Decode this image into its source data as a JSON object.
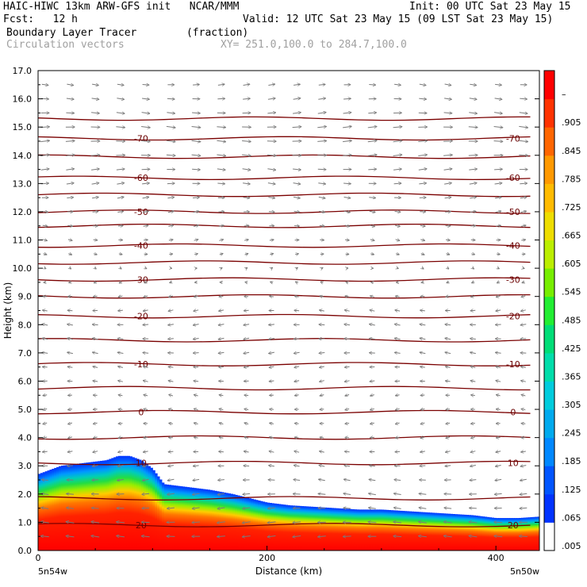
{
  "header": {
    "line1_left": "HAIC-HIWC 13km ARW-GFS init   NCAR/MMM",
    "line1_right": "Init: 00 UTC Sat 23 May 15",
    "line2_left": "Fcst:   12 h",
    "line2_right": "Valid: 12 UTC Sat 23 May 15 (09 LST Sat 23 May 15)",
    "line3_left": "Boundary Layer Tracer        (fraction)",
    "line4_left": "Circulation vectors",
    "line4_right": "XY= 251.0,100.0 to 284.7,100.0"
  },
  "chart_data": {
    "type": "heatmap",
    "xlabel": "Distance (km)",
    "ylabel": "Height (km)",
    "xlim": [
      0,
      438
    ],
    "ylim": [
      0,
      17
    ],
    "x_ticks": [
      "0",
      "200",
      "400"
    ],
    "x_tick_values": [
      0,
      200,
      400
    ],
    "y_ticks": [
      "0.0",
      "1.0",
      "2.0",
      "3.0",
      "4.0",
      "5.0",
      "6.0",
      "7.0",
      "8.0",
      "9.0",
      "10.0",
      "11.0",
      "12.0",
      "13.0",
      "14.0",
      "15.0",
      "16.0",
      "17.0"
    ],
    "x_endpoint_labels": {
      "left": "5n54w",
      "right": "5n50w"
    },
    "tracer_top_profile": {
      "x": [
        0,
        20,
        40,
        60,
        70,
        80,
        90,
        100,
        110,
        130,
        150,
        170,
        190,
        200,
        220,
        240,
        260,
        280,
        300,
        320,
        340,
        360,
        380,
        400,
        420,
        438
      ],
      "top_km": [
        2.7,
        3.0,
        3.1,
        3.2,
        3.35,
        3.35,
        3.2,
        2.9,
        2.35,
        2.25,
        2.15,
        2.0,
        1.8,
        1.7,
        1.6,
        1.55,
        1.5,
        1.45,
        1.45,
        1.4,
        1.35,
        1.3,
        1.25,
        1.15,
        1.15,
        1.2
      ]
    },
    "colorbar": {
      "labels": [
        ".005",
        ".065",
        ".125",
        ".185",
        ".245",
        ".305",
        ".365",
        ".425",
        ".485",
        ".545",
        ".605",
        ".665",
        ".725",
        ".785",
        ".845",
        ".905",
        "–"
      ],
      "colors": [
        "#ffffff",
        "#0033ff",
        "#0055ff",
        "#0088ff",
        "#00aaee",
        "#00ccdd",
        "#00ddaa",
        "#00dd77",
        "#22ee33",
        "#77ee00",
        "#bbee00",
        "#eedd00",
        "#ffbb00",
        "#ff9900",
        "#ff6600",
        "#ff3300",
        "#ff0000"
      ]
    },
    "temperature_contours": {
      "labeled": [
        {
          "label": "-70",
          "height_km": 14.6
        },
        {
          "label": "-60",
          "height_km": 13.2
        },
        {
          "label": "-50",
          "height_km": 12.0
        },
        {
          "label": "-40",
          "height_km": 10.8
        },
        {
          "label": "-30",
          "height_km": 9.6
        },
        {
          "label": "-20",
          "height_km": 8.3
        },
        {
          "label": "-10",
          "height_km": 6.6
        },
        {
          "label": "0",
          "height_km": 4.9
        },
        {
          "label": "10",
          "height_km": 3.1
        },
        {
          "label": "20",
          "height_km": 0.9
        }
      ],
      "line_heights_km": [
        0.9,
        1.85,
        3.1,
        4.0,
        4.9,
        5.75,
        6.6,
        7.45,
        8.3,
        9.0,
        9.6,
        10.2,
        10.8,
        11.5,
        12.0,
        12.6,
        13.2,
        13.95,
        14.6,
        15.3
      ]
    },
    "vectors": {
      "rows_km": [
        0.5,
        1.0,
        1.5,
        2.0,
        2.5,
        3.0,
        3.5,
        4.0,
        4.5,
        5.0,
        5.5,
        6.0,
        6.5,
        7.0,
        7.5,
        8.0,
        8.5,
        9.0,
        9.5,
        10.0,
        10.5,
        11.0,
        11.5,
        12.0,
        12.5,
        13.0,
        13.5,
        14.0,
        14.5,
        15.0,
        15.5,
        16.0,
        16.5
      ],
      "u_by_row": [
        -1,
        -1,
        -0.9,
        -0.9,
        -0.8,
        -0.7,
        -0.6,
        -0.5,
        -0.5,
        -0.5,
        -0.5,
        -0.6,
        -0.6,
        -0.7,
        -0.7,
        -0.7,
        -0.6,
        -0.5,
        -0.3,
        0.2,
        0.4,
        0.5,
        0.6,
        0.7,
        0.8,
        0.9,
        1.0,
        1.1,
        1.1,
        1.1,
        1.0,
        0.9,
        0.8
      ]
    }
  }
}
